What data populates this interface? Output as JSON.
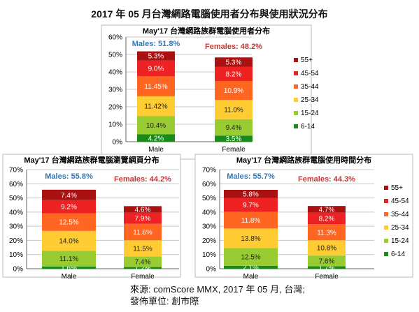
{
  "title": "2017 年 05 月台灣網路電腦使用者分布與使用狀況分布",
  "source_lines": [
    "來源: comScore MMX, 2017 年 05 月, 台灣;",
    "發佈單位: 創市際"
  ],
  "colors": {
    "6-14": "#1a8a1a",
    "15-24": "#99cc33",
    "25-34": "#ffcc33",
    "35-44": "#ff6622",
    "45-54": "#ee2222",
    "55+": "#aa1111",
    "males_label": "#3377bb",
    "females_label": "#cc3333"
  },
  "chart_data": [
    {
      "type": "bar",
      "stacked": true,
      "title": "May'17 台灣網路族群電腦使用者分布",
      "categories": [
        "Male",
        "Female"
      ],
      "y_ticks": [
        "0%",
        "10%",
        "20%",
        "30%",
        "40%",
        "50%",
        "60%"
      ],
      "ylim": [
        0,
        60
      ],
      "legend": [
        "55+",
        "45-54",
        "35-44",
        "25-34",
        "15-24",
        "6-14"
      ],
      "legend_position": "right",
      "group_labels": [
        "Males: 51.8%",
        "Females: 48.2%"
      ],
      "series": [
        {
          "name": "6-14",
          "values": [
            4.2,
            3.5
          ],
          "labels": [
            "4.2%",
            "3.5%"
          ]
        },
        {
          "name": "15-24",
          "values": [
            10.4,
            9.4
          ],
          "labels": [
            "10.4%",
            "9.4%"
          ]
        },
        {
          "name": "25-34",
          "values": [
            11.42,
            11.0
          ],
          "labels": [
            "11.42%",
            "11.0%"
          ]
        },
        {
          "name": "35-44",
          "values": [
            11.45,
            10.9
          ],
          "labels": [
            "11.45%",
            "10.9%"
          ]
        },
        {
          "name": "45-54",
          "values": [
            9.0,
            8.2
          ],
          "labels": [
            "9.0%",
            "8.2%"
          ]
        },
        {
          "name": "55+",
          "values": [
            5.3,
            5.3
          ],
          "labels": [
            "5.3%",
            "5.3%"
          ]
        }
      ]
    },
    {
      "type": "bar",
      "stacked": true,
      "title": "May'17 台灣網路族群電腦瀏覽網頁分布",
      "categories": [
        "Male",
        "Female"
      ],
      "y_ticks": [
        "0%",
        "10%",
        "20%",
        "30%",
        "40%",
        "50%",
        "60%",
        "70%"
      ],
      "ylim": [
        0,
        70
      ],
      "legend": [],
      "group_labels": [
        "Males: 55.8%",
        "Females: 44.2%"
      ],
      "series": [
        {
          "name": "6-14",
          "values": [
            1.6,
            1.2
          ],
          "labels": [
            "1.6%",
            "1.2%"
          ]
        },
        {
          "name": "15-24",
          "values": [
            11.1,
            7.4
          ],
          "labels": [
            "11.1%",
            "7.4%"
          ]
        },
        {
          "name": "25-34",
          "values": [
            14.0,
            11.5
          ],
          "labels": [
            "14.0%",
            "11.5%"
          ]
        },
        {
          "name": "35-44",
          "values": [
            12.5,
            11.6
          ],
          "labels": [
            "12.5%",
            "11.6%"
          ]
        },
        {
          "name": "45-54",
          "values": [
            9.2,
            7.9
          ],
          "labels": [
            "9.2%",
            "7.9%"
          ]
        },
        {
          "name": "55+",
          "values": [
            7.4,
            4.6
          ],
          "labels": [
            "7.4%",
            "4.6%"
          ]
        }
      ]
    },
    {
      "type": "bar",
      "stacked": true,
      "title": "May'17 台灣網路族群電腦使用時間分布",
      "categories": [
        "Male",
        "Female"
      ],
      "y_ticks": [
        "0%",
        "10%",
        "20%",
        "30%",
        "40%",
        "50%",
        "60%",
        "70%"
      ],
      "ylim": [
        0,
        70
      ],
      "legend": [
        "55+",
        "45-54",
        "35-44",
        "25-34",
        "15-24",
        "6-14"
      ],
      "legend_position": "right",
      "group_labels": [
        "Males: 55.7%",
        "Females: 44.3%"
      ],
      "series": [
        {
          "name": "6-14",
          "values": [
            2.1,
            1.7
          ],
          "labels": [
            "2.1%",
            "1.7%"
          ]
        },
        {
          "name": "15-24",
          "values": [
            12.5,
            7.6
          ],
          "labels": [
            "12.5%",
            "7.6%"
          ]
        },
        {
          "name": "25-34",
          "values": [
            13.8,
            10.8
          ],
          "labels": [
            "13.8%",
            "10.8%"
          ]
        },
        {
          "name": "35-44",
          "values": [
            11.8,
            11.3
          ],
          "labels": [
            "11.8%",
            "11.3%"
          ]
        },
        {
          "name": "45-54",
          "values": [
            9.7,
            8.2
          ],
          "labels": [
            "9.7%",
            "8.2%"
          ]
        },
        {
          "name": "55+",
          "values": [
            5.8,
            4.7
          ],
          "labels": [
            "5.8%",
            "4.7%"
          ]
        }
      ]
    }
  ]
}
